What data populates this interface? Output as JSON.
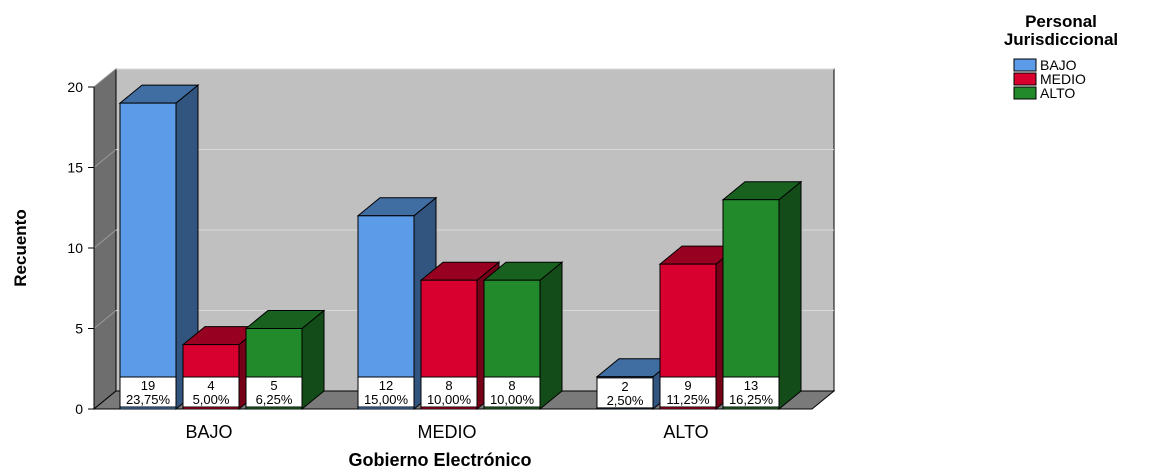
{
  "chart_data": {
    "type": "bar",
    "title": "",
    "xlabel": "Gobierno Electrónico",
    "ylabel": "Recuento",
    "ylim": [
      0,
      20
    ],
    "yticks": [
      0,
      5,
      10,
      15,
      20
    ],
    "grid": true,
    "legend_title": [
      "Personal",
      "Jurisdiccional"
    ],
    "legend_position": "top-right",
    "categories": [
      "BAJO",
      "MEDIO",
      "ALTO"
    ],
    "series": [
      {
        "name": "BAJO",
        "color": "#5b9be8",
        "values": [
          19,
          12,
          2
        ],
        "pct": [
          "23,75%",
          "15,00%",
          "2,50%"
        ]
      },
      {
        "name": "MEDIO",
        "color": "#d8002e",
        "values": [
          4,
          8,
          9
        ],
        "pct": [
          "5,00%",
          "10,00%",
          "11,25%"
        ]
      },
      {
        "name": "ALTO",
        "color": "#238a2c",
        "values": [
          5,
          8,
          13
        ],
        "pct": [
          "6,25%",
          "10,00%",
          "16,25%"
        ]
      }
    ]
  }
}
